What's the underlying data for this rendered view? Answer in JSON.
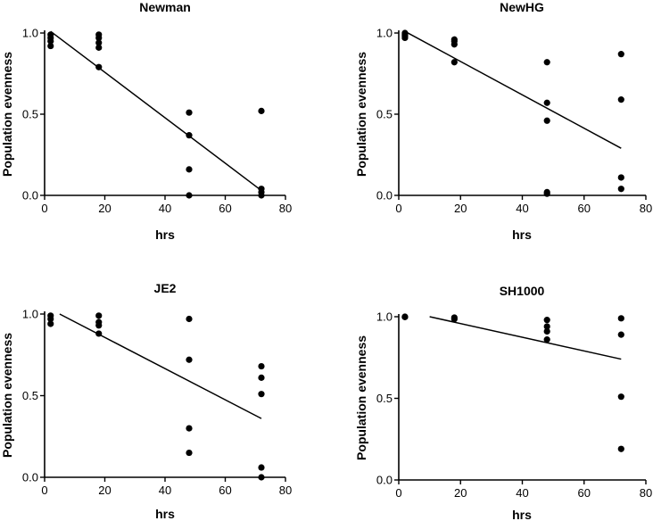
{
  "figure": {
    "panel_count": 4,
    "colors": {
      "ink": "#000000",
      "background": "#ffffff"
    }
  },
  "chart_data": [
    {
      "type": "scatter",
      "title": "Newman",
      "xlabel": "hrs",
      "ylabel": "Population evenness",
      "xlim": [
        0,
        80
      ],
      "ylim": [
        0,
        1.0
      ],
      "x_ticks": [
        "0",
        "20",
        "40",
        "60",
        "80"
      ],
      "y_ticks": [
        "0.0",
        "0.5",
        "1.0"
      ],
      "series": [
        {
          "name": "observations",
          "points": [
            [
              2,
              0.99
            ],
            [
              2,
              0.97
            ],
            [
              2,
              0.95
            ],
            [
              2,
              0.92
            ],
            [
              18,
              0.99
            ],
            [
              18,
              0.97
            ],
            [
              18,
              0.94
            ],
            [
              18,
              0.91
            ],
            [
              18,
              0.79
            ],
            [
              48,
              0.51
            ],
            [
              48,
              0.37
            ],
            [
              48,
              0.16
            ],
            [
              48,
              0.0
            ],
            [
              72,
              0.52
            ],
            [
              72,
              0.04
            ],
            [
              72,
              0.02
            ],
            [
              72,
              0.0
            ]
          ]
        }
      ],
      "fit_line": {
        "x": [
          2,
          72
        ],
        "y": [
          1.01,
          0.03
        ]
      }
    },
    {
      "type": "scatter",
      "title": "NewHG",
      "xlabel": "hrs",
      "ylabel": "Population evenness",
      "xlim": [
        0,
        80
      ],
      "ylim": [
        0,
        1.0
      ],
      "x_ticks": [
        "0",
        "20",
        "40",
        "60",
        "80"
      ],
      "y_ticks": [
        "0.0",
        "0.5",
        "1.0"
      ],
      "series": [
        {
          "name": "observations",
          "points": [
            [
              2,
              1.0
            ],
            [
              2,
              0.99
            ],
            [
              2,
              0.98
            ],
            [
              2,
              0.97
            ],
            [
              18,
              0.96
            ],
            [
              18,
              0.95
            ],
            [
              18,
              0.93
            ],
            [
              18,
              0.82
            ],
            [
              48,
              0.82
            ],
            [
              48,
              0.57
            ],
            [
              48,
              0.46
            ],
            [
              48,
              0.02
            ],
            [
              48,
              0.01
            ],
            [
              72,
              0.87
            ],
            [
              72,
              0.59
            ],
            [
              72,
              0.11
            ],
            [
              72,
              0.04
            ]
          ]
        }
      ],
      "fit_line": {
        "x": [
          2,
          72
        ],
        "y": [
          1.01,
          0.29
        ]
      }
    },
    {
      "type": "scatter",
      "title": "JE2",
      "xlabel": "hrs",
      "ylabel": "Population evenness",
      "xlim": [
        0,
        80
      ],
      "ylim": [
        0,
        1.0
      ],
      "x_ticks": [
        "0",
        "20",
        "40",
        "60",
        "80"
      ],
      "y_ticks": [
        "0.0",
        "0.5",
        "1.0"
      ],
      "series": [
        {
          "name": "observations",
          "points": [
            [
              2,
              0.99
            ],
            [
              2,
              0.97
            ],
            [
              2,
              0.94
            ],
            [
              18,
              0.99
            ],
            [
              18,
              0.95
            ],
            [
              18,
              0.93
            ],
            [
              18,
              0.88
            ],
            [
              48,
              0.97
            ],
            [
              48,
              0.72
            ],
            [
              48,
              0.3
            ],
            [
              48,
              0.15
            ],
            [
              72,
              0.68
            ],
            [
              72,
              0.61
            ],
            [
              72,
              0.51
            ],
            [
              72,
              0.06
            ],
            [
              72,
              0.0
            ]
          ]
        }
      ],
      "fit_line": {
        "x": [
          5,
          72
        ],
        "y": [
          1.0,
          0.36
        ]
      }
    },
    {
      "type": "scatter",
      "title": "SH1000",
      "xlabel": "hrs",
      "ylabel": "Population evenness",
      "xlim": [
        0,
        80
      ],
      "ylim": [
        0,
        1.0
      ],
      "x_ticks": [
        "0",
        "20",
        "40",
        "60",
        "80"
      ],
      "y_ticks": [
        "0.0",
        "0.5",
        "1.0"
      ],
      "series": [
        {
          "name": "observations",
          "points": [
            [
              2,
              1.0
            ],
            [
              2,
              0.998
            ],
            [
              18,
              0.995
            ],
            [
              18,
              0.985
            ],
            [
              48,
              0.98
            ],
            [
              48,
              0.94
            ],
            [
              48,
              0.91
            ],
            [
              48,
              0.86
            ],
            [
              72,
              0.99
            ],
            [
              72,
              0.89
            ],
            [
              72,
              0.51
            ],
            [
              72,
              0.19
            ]
          ]
        }
      ],
      "fit_line": {
        "x": [
          10,
          72
        ],
        "y": [
          1.0,
          0.74
        ]
      }
    }
  ]
}
